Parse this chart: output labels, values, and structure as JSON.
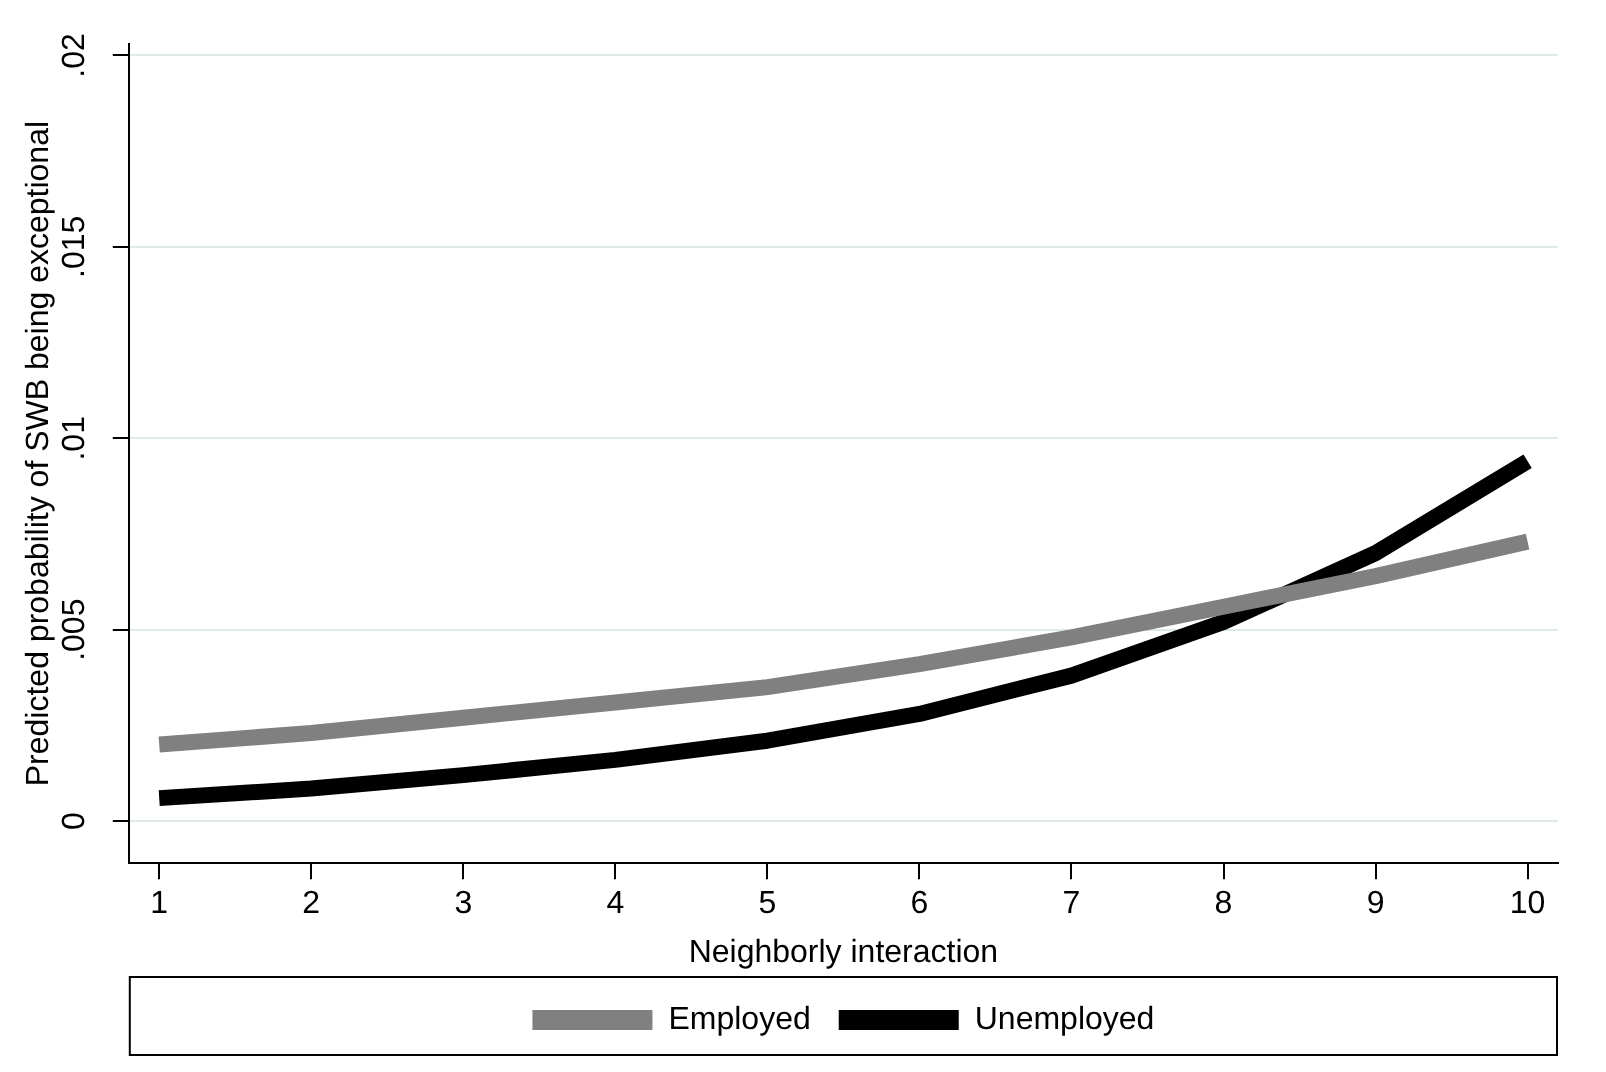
{
  "chart_data": {
    "type": "line",
    "xlabel": "Neighborly interaction",
    "ylabel": "Predicted probability of SWB being exceptional",
    "x": [
      1,
      2,
      3,
      4,
      5,
      6,
      7,
      8,
      9,
      10
    ],
    "series": [
      {
        "name": "Employed",
        "color": "#808080",
        "values": [
          0.002,
          0.0023,
          0.0027,
          0.0031,
          0.0035,
          0.0041,
          0.0048,
          0.0056,
          0.0064,
          0.0073
        ]
      },
      {
        "name": "Unemployed",
        "color": "#000000",
        "values": [
          0.0006,
          0.00085,
          0.0012,
          0.0016,
          0.0021,
          0.0028,
          0.0038,
          0.0052,
          0.007,
          0.0094
        ]
      }
    ],
    "xlim": [
      0.8,
      10.2
    ],
    "xticks": [
      1,
      2,
      3,
      4,
      5,
      6,
      7,
      8,
      9,
      10
    ],
    "ylim": [
      -0.0011,
      0.0203
    ],
    "yticks": [
      {
        "value": 0,
        "label": "0"
      },
      {
        "value": 0.005,
        "label": ".005"
      },
      {
        "value": 0.01,
        "label": ".01"
      },
      {
        "value": 0.015,
        "label": ".015"
      },
      {
        "value": 0.02,
        "label": ".02"
      }
    ],
    "grid": "y",
    "legend": "bottom",
    "marker": "none",
    "line_style": "solid"
  }
}
